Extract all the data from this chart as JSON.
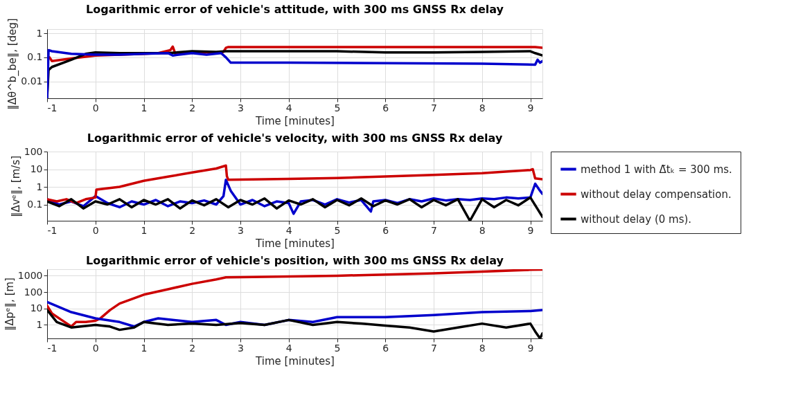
{
  "chart_data": [
    {
      "type": "line",
      "title": "Logarithmic error of vehicle's attitude, with 300 ms GNSS Rx delay",
      "xlabel": "Time [minutes]",
      "ylabel": "‖Δθ^b_be‖, [deg]",
      "log": "y",
      "grid": true,
      "legend": false,
      "line_style": "solid",
      "xlim": [
        -1,
        9.25
      ],
      "xticks": [
        -1,
        0,
        1,
        2,
        3,
        4,
        5,
        6,
        7,
        8,
        9
      ],
      "ylim": [
        0.002,
        1.5
      ],
      "yticks": [
        0.01,
        0.1,
        1
      ],
      "series": [
        {
          "color": "#cc0000",
          "x": [
            -0.95,
            -0.9,
            -0.5,
            0,
            0.5,
            1,
            1.3,
            1.55,
            1.6,
            1.65,
            2,
            2.5,
            2.65,
            2.7,
            2.75,
            9.1,
            9.25
          ],
          "values": [
            0.1,
            0.07,
            0.09,
            0.12,
            0.13,
            0.14,
            0.15,
            0.2,
            0.28,
            0.15,
            0.17,
            0.16,
            0.17,
            0.25,
            0.27,
            0.27,
            0.25
          ]
        },
        {
          "color": "#000000",
          "x": [
            -1,
            -0.97,
            -0.9,
            -0.5,
            -0.2,
            0,
            0.5,
            1,
            1.5,
            2,
            2.5,
            2.7,
            3,
            5,
            6,
            7,
            8,
            9,
            9.1,
            9.25
          ],
          "values": [
            0.002,
            0.03,
            0.04,
            0.08,
            0.14,
            0.16,
            0.15,
            0.15,
            0.15,
            0.18,
            0.17,
            0.18,
            0.18,
            0.18,
            0.16,
            0.16,
            0.17,
            0.18,
            0.15,
            0.12
          ]
        },
        {
          "color": "#0000cc",
          "x": [
            -1,
            -0.97,
            -0.9,
            -0.5,
            0,
            0.5,
            1,
            1.5,
            1.6,
            2,
            2.3,
            2.6,
            2.7,
            2.8,
            4,
            6,
            8,
            9.1,
            9.15,
            9.2,
            9.25
          ],
          "values": [
            0.002,
            0.2,
            0.18,
            0.14,
            0.13,
            0.13,
            0.14,
            0.15,
            0.12,
            0.15,
            0.13,
            0.15,
            0.1,
            0.06,
            0.06,
            0.058,
            0.055,
            0.05,
            0.08,
            0.06,
            0.07
          ]
        }
      ]
    },
    {
      "type": "line",
      "title": "Logarithmic error of vehicle's velocity, with 300 ms GNSS Rx delay",
      "xlabel": "Time [minutes]",
      "ylabel": "‖Δvᵉ‖, [m/s]",
      "log": "y",
      "grid": true,
      "legend": "right",
      "line_style": "solid",
      "xlim": [
        -1,
        9.25
      ],
      "xticks": [
        -1,
        0,
        1,
        2,
        3,
        4,
        5,
        6,
        7,
        8,
        9
      ],
      "ylim": [
        0.012,
        100
      ],
      "yticks": [
        0.1,
        1,
        10,
        100
      ],
      "series": [
        {
          "name": "method 1 with Δ̃tₖ = 300 ms.",
          "color": "#0000cc",
          "x": [
            -1,
            -0.75,
            -0.5,
            -0.25,
            0,
            0.25,
            0.5,
            0.75,
            1,
            1.25,
            1.5,
            1.75,
            2,
            2.25,
            2.5,
            2.65,
            2.7,
            2.8,
            3,
            3.25,
            3.5,
            3.75,
            4,
            4.1,
            4.25,
            4.5,
            4.75,
            5,
            5.25,
            5.5,
            5.7,
            5.75,
            6,
            6.25,
            6.5,
            6.75,
            7,
            7.25,
            7.5,
            7.75,
            8,
            8.25,
            8.5,
            8.75,
            9,
            9.1,
            9.2,
            9.25
          ],
          "values": [
            0.2,
            0.1,
            0.15,
            0.08,
            0.3,
            0.12,
            0.07,
            0.15,
            0.1,
            0.18,
            0.08,
            0.15,
            0.12,
            0.17,
            0.1,
            0.3,
            2.5,
            0.6,
            0.1,
            0.18,
            0.08,
            0.15,
            0.12,
            0.03,
            0.15,
            0.18,
            0.1,
            0.2,
            0.13,
            0.18,
            0.04,
            0.15,
            0.18,
            0.12,
            0.2,
            0.15,
            0.22,
            0.17,
            0.2,
            0.18,
            0.22,
            0.2,
            0.25,
            0.22,
            0.25,
            1.5,
            0.6,
            0.4
          ]
        },
        {
          "name": "without delay compensation.",
          "color": "#cc0000",
          "x": [
            -1,
            -0.8,
            -0.6,
            -0.4,
            -0.2,
            0,
            0.02,
            0.2,
            0.5,
            1,
            1.5,
            2,
            2.5,
            2.7,
            2.72,
            2.75,
            4,
            5,
            6,
            7,
            8,
            9,
            9.05,
            9.1,
            9.25
          ],
          "values": [
            0.2,
            0.15,
            0.2,
            0.12,
            0.2,
            0.25,
            0.7,
            0.8,
            1.0,
            2.2,
            3.8,
            6.5,
            11,
            16,
            4,
            2.5,
            2.8,
            3.2,
            3.9,
            4.7,
            6,
            9,
            10,
            3,
            2.7
          ]
        },
        {
          "name": "without delay (0 ms).",
          "color": "#000000",
          "x": [
            -1,
            -0.75,
            -0.5,
            -0.25,
            0,
            0.25,
            0.5,
            0.75,
            1,
            1.25,
            1.5,
            1.75,
            2,
            2.25,
            2.5,
            2.75,
            3,
            3.25,
            3.5,
            3.75,
            4,
            4.25,
            4.5,
            4.75,
            5,
            5.25,
            5.5,
            5.75,
            6,
            6.25,
            6.5,
            6.75,
            7,
            7.25,
            7.5,
            7.75,
            8,
            8.25,
            8.5,
            8.75,
            9,
            9.25
          ],
          "values": [
            0.15,
            0.08,
            0.2,
            0.06,
            0.15,
            0.1,
            0.2,
            0.07,
            0.18,
            0.1,
            0.2,
            0.06,
            0.17,
            0.09,
            0.2,
            0.07,
            0.18,
            0.1,
            0.22,
            0.06,
            0.17,
            0.1,
            0.2,
            0.07,
            0.18,
            0.09,
            0.22,
            0.08,
            0.17,
            0.1,
            0.2,
            0.07,
            0.18,
            0.09,
            0.2,
            0.012,
            0.2,
            0.07,
            0.18,
            0.09,
            0.25,
            0.02
          ]
        }
      ]
    },
    {
      "type": "line",
      "title": "Logarithmic error of vehicle's position, with 300 ms GNSS Rx delay",
      "xlabel": "Time [minutes]",
      "ylabel": "‖Δpᵉ‖, [m]",
      "log": "y",
      "grid": true,
      "legend": false,
      "line_style": "solid",
      "xlim": [
        -1,
        9.25
      ],
      "xticks": [
        -1,
        0,
        1,
        2,
        3,
        4,
        5,
        6,
        7,
        8,
        9
      ],
      "ylim": [
        0.15,
        2500
      ],
      "yticks": [
        1,
        10,
        100,
        1000
      ],
      "series": [
        {
          "color": "#cc0000",
          "x": [
            -1,
            -0.9,
            -0.7,
            -0.5,
            -0.4,
            -0.2,
            0,
            0.1,
            0.3,
            0.5,
            1,
            1.5,
            2,
            2.5,
            2.7,
            3,
            5,
            7,
            8,
            9,
            9.25
          ],
          "values": [
            15,
            5,
            2,
            0.8,
            1.5,
            1.5,
            1.8,
            2.5,
            8,
            20,
            70,
            150,
            320,
            600,
            800,
            820,
            1000,
            1400,
            1800,
            2300,
            2400
          ]
        },
        {
          "color": "#0000cc",
          "x": [
            -1,
            -0.5,
            0,
            0.5,
            0.8,
            1,
            1.3,
            2,
            2.5,
            2.7,
            3,
            3.5,
            4,
            4.5,
            5,
            6,
            7,
            8,
            9,
            9.25
          ],
          "values": [
            25,
            6,
            2.5,
            1.5,
            0.8,
            1.5,
            2.5,
            1.5,
            2,
            1,
            1.5,
            1,
            2,
            1.5,
            3,
            3,
            4,
            6,
            7,
            8
          ]
        },
        {
          "color": "#000000",
          "x": [
            -1,
            -0.8,
            -0.5,
            0,
            0.3,
            0.5,
            0.8,
            1,
            1.5,
            2,
            2.5,
            3,
            3.5,
            4,
            4.5,
            5,
            5.5,
            6,
            6.5,
            7,
            7.5,
            8,
            8.5,
            9,
            9.1,
            9.2,
            9.25
          ],
          "values": [
            8,
            1.5,
            0.7,
            1,
            0.8,
            0.5,
            0.7,
            1.5,
            1,
            1.2,
            1,
            1.3,
            1,
            2,
            1,
            1.5,
            1.2,
            0.9,
            0.7,
            0.4,
            0.7,
            1.2,
            0.7,
            1.2,
            0.4,
            0.15,
            0.3
          ]
        }
      ]
    }
  ]
}
